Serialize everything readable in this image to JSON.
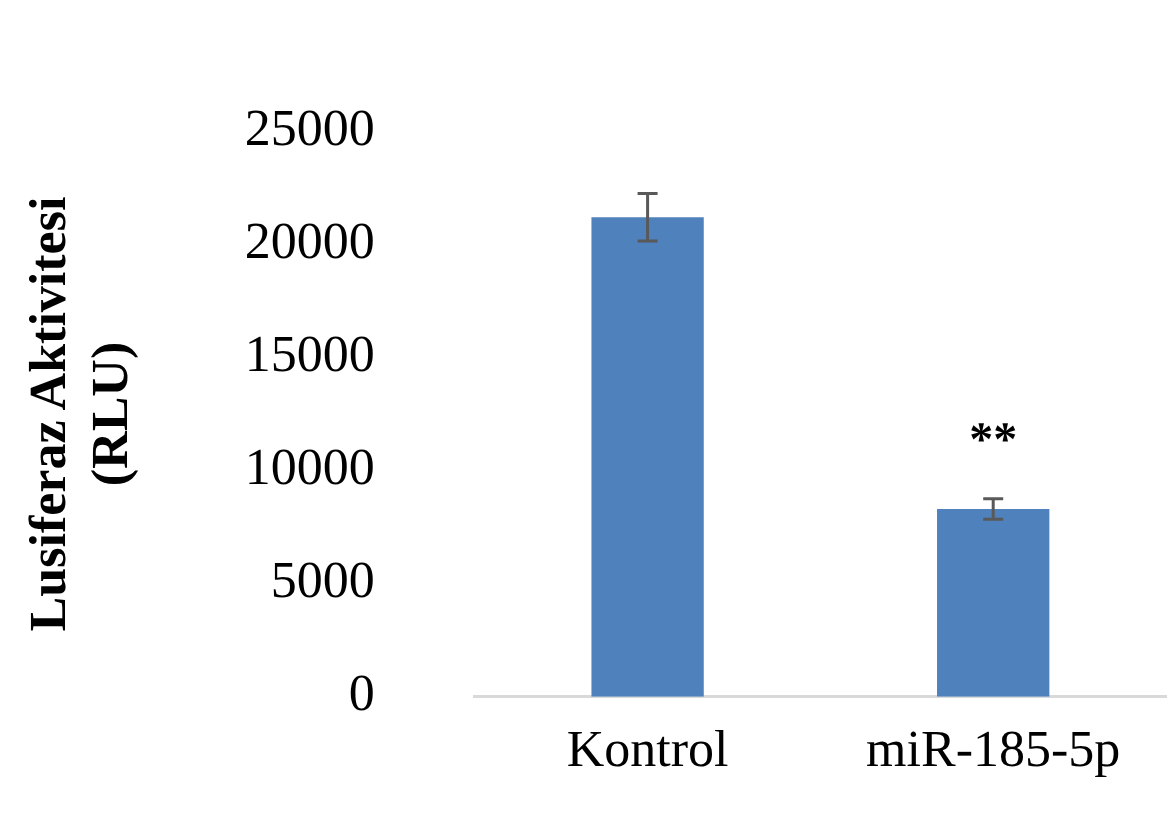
{
  "chart_data": {
    "type": "bar",
    "ylabel": "Lusiferaz Aktivitesi (RLU)",
    "categories": [
      "Kontrol",
      "miR-185-5p"
    ],
    "values": [
      21200,
      8300
    ],
    "errors": [
      1050,
      450
    ],
    "color": "#4f81bd",
    "ylim": [
      0,
      25000
    ],
    "yticks": [
      0,
      5000,
      10000,
      15000,
      20000,
      25000
    ],
    "grid": false,
    "legend": false,
    "annotations": [
      "**"
    ]
  }
}
